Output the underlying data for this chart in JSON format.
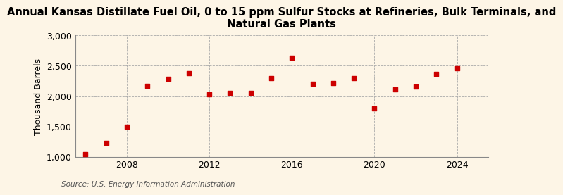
{
  "title_line1": "Annual Kansas Distillate Fuel Oil, 0 to 15 ppm Sulfur Stocks at Refineries, Bulk Terminals, and",
  "title_line2": "Natural Gas Plants",
  "ylabel": "Thousand Barrels",
  "source": "Source: U.S. Energy Information Administration",
  "background_color": "#fdf5e6",
  "plot_bg_color": "#fdf5e6",
  "marker_color": "#cc0000",
  "years": [
    2006,
    2007,
    2008,
    2009,
    2010,
    2011,
    2012,
    2013,
    2014,
    2015,
    2016,
    2017,
    2018,
    2019,
    2020,
    2021,
    2022,
    2023,
    2024
  ],
  "values": [
    1050,
    1230,
    1500,
    2170,
    2280,
    2380,
    2030,
    2050,
    2060,
    2300,
    2630,
    2200,
    2220,
    2300,
    1800,
    2110,
    2160,
    2370,
    2460
  ],
  "xlim": [
    2005.5,
    2025.5
  ],
  "ylim": [
    1000,
    3000
  ],
  "yticks": [
    1000,
    1500,
    2000,
    2500,
    3000
  ],
  "xticks": [
    2008,
    2012,
    2016,
    2020,
    2024
  ],
  "grid_color": "#aaaaaa",
  "title_fontsize": 10.5,
  "axis_fontsize": 9,
  "source_fontsize": 7.5
}
